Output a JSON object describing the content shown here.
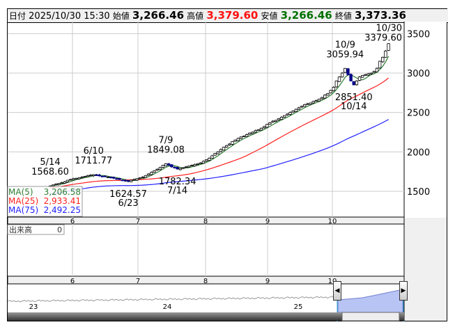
{
  "header": {
    "date_label": "日付",
    "datetime": "2025/10/30 15:30",
    "open_label": "始値",
    "open": "3,266.46",
    "high_label": "高値",
    "high": "3,379.60",
    "low_label": "安値",
    "low": "3,266.46",
    "close_label": "終値",
    "close": "3,373.36"
  },
  "colors": {
    "up": "#ffffff",
    "down": "#00008b",
    "ma5": "#2e7d32",
    "ma25": "#ff2020",
    "ma75": "#2020ff",
    "high": "#ff0000",
    "low": "#007000",
    "nav_fill": "#b8c4f4"
  },
  "legend": [
    {
      "label": "MA(5)",
      "value": "3,206.58"
    },
    {
      "label": "MA(25)",
      "value": "2,933.41"
    },
    {
      "label": "MA(75)",
      "value": "2,492.25"
    }
  ],
  "volume": {
    "label": "出来高",
    "value": "0"
  },
  "navigator": {
    "year_labels": [
      "23",
      "24",
      "25"
    ]
  },
  "chart_data": {
    "type": "candlestick",
    "y_ticks": [
      1500,
      2000,
      2500,
      3000,
      3500
    ],
    "x_month_labels": [
      "6",
      "7",
      "8",
      "9",
      "10"
    ],
    "closes": [
      1568,
      1580,
      1590,
      1600,
      1610,
      1620,
      1640,
      1650,
      1660,
      1665,
      1670,
      1680,
      1690,
      1700,
      1705,
      1711,
      1700,
      1695,
      1690,
      1688,
      1680,
      1670,
      1665,
      1660,
      1650,
      1640,
      1630,
      1625,
      1640,
      1650,
      1660,
      1670,
      1680,
      1700,
      1720,
      1740,
      1760,
      1780,
      1800,
      1830,
      1849,
      1830,
      1810,
      1800,
      1782,
      1790,
      1800,
      1810,
      1820,
      1830,
      1840,
      1850,
      1860,
      1880,
      1900,
      1920,
      1950,
      1980,
      2000,
      2030,
      2060,
      2080,
      2100,
      2130,
      2150,
      2170,
      2190,
      2200,
      2220,
      2240,
      2250,
      2270,
      2280,
      2300,
      2320,
      2350,
      2370,
      2390,
      2400,
      2420,
      2440,
      2460,
      2480,
      2500,
      2520,
      2540,
      2560,
      2580,
      2600,
      2610,
      2620,
      2640,
      2650,
      2670,
      2690,
      2720,
      2740,
      2780,
      2820,
      2900,
      2950,
      3000,
      3059,
      2980,
      2900,
      2851,
      2900,
      2950,
      2970,
      2980,
      2990,
      3000,
      3020,
      3060,
      3150,
      3200,
      3280,
      3373
    ],
    "annotations": [
      {
        "date": "5/14",
        "value": "1568.60",
        "i": 0,
        "pos": "above"
      },
      {
        "date": "6/10",
        "value": "1711.77",
        "i": 15,
        "pos": "above"
      },
      {
        "date": "6/23",
        "value": "1624.57",
        "i": 27,
        "pos": "below"
      },
      {
        "date": "7/9",
        "value": "1849.08",
        "i": 40,
        "pos": "above"
      },
      {
        "date": "7/14",
        "value": "1782.34",
        "i": 44,
        "pos": "below"
      },
      {
        "date": "10/9",
        "value": "3059.94",
        "i": 102,
        "pos": "above"
      },
      {
        "date": "10/14",
        "value": "2851.40",
        "i": 105,
        "pos": "below"
      },
      {
        "date": "10/30",
        "value": "3379.60",
        "i": 117,
        "pos": "above"
      }
    ]
  }
}
